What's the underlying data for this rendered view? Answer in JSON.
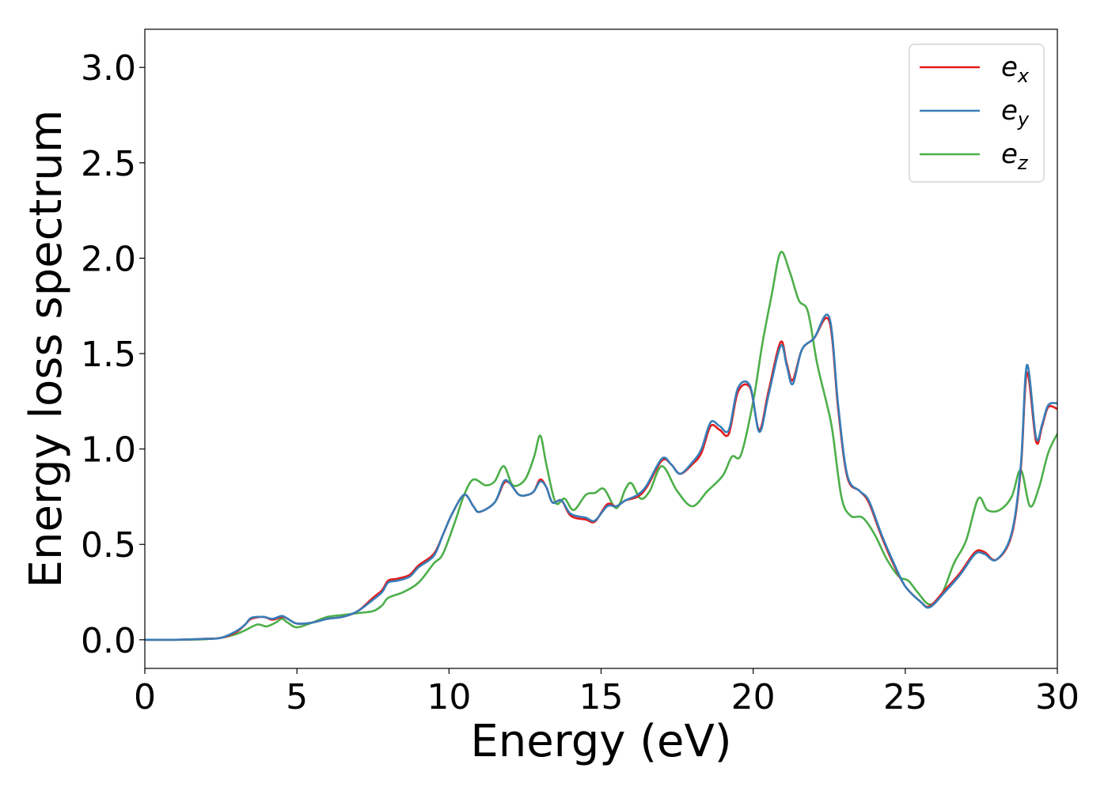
{
  "chart_data": {
    "type": "line",
    "title": "",
    "xlabel": "Energy (eV)",
    "ylabel": "Energy loss spectrum",
    "xlim": [
      0,
      30
    ],
    "ylim": [
      -0.15,
      3.2
    ],
    "xticks": [
      0,
      5,
      10,
      15,
      20,
      25,
      30
    ],
    "xtick_labels": [
      "0",
      "5",
      "10",
      "15",
      "20",
      "25",
      "30"
    ],
    "yticks": [
      0.0,
      0.5,
      1.0,
      1.5,
      2.0,
      2.5,
      3.0
    ],
    "ytick_labels": [
      "0.0",
      "0.5",
      "1.0",
      "1.5",
      "2.0",
      "2.5",
      "3.0"
    ],
    "grid": false,
    "legend_position": "top-right",
    "series": [
      {
        "name": "e_x",
        "legend_base": "e",
        "legend_sub": "x",
        "color": "#e41a1c",
        "points": [
          [
            0,
            0
          ],
          [
            1,
            0
          ],
          [
            2,
            0.005
          ],
          [
            2.5,
            0.01
          ],
          [
            3,
            0.04
          ],
          [
            3.3,
            0.08
          ],
          [
            3.5,
            0.11
          ],
          [
            3.9,
            0.12
          ],
          [
            4.2,
            0.105
          ],
          [
            4.5,
            0.12
          ],
          [
            4.7,
            0.11
          ],
          [
            5,
            0.085
          ],
          [
            5.5,
            0.09
          ],
          [
            6,
            0.11
          ],
          [
            6.5,
            0.12
          ],
          [
            7,
            0.15
          ],
          [
            7.5,
            0.22
          ],
          [
            7.8,
            0.26
          ],
          [
            8,
            0.31
          ],
          [
            8.3,
            0.32
          ],
          [
            8.7,
            0.34
          ],
          [
            9,
            0.39
          ],
          [
            9.5,
            0.45
          ],
          [
            9.8,
            0.55
          ],
          [
            10.1,
            0.66
          ],
          [
            10.5,
            0.76
          ],
          [
            10.8,
            0.7
          ],
          [
            11,
            0.67
          ],
          [
            11.5,
            0.72
          ],
          [
            11.8,
            0.82
          ],
          [
            12,
            0.82
          ],
          [
            12.3,
            0.76
          ],
          [
            12.6,
            0.76
          ],
          [
            12.8,
            0.78
          ],
          [
            13,
            0.84
          ],
          [
            13.2,
            0.8
          ],
          [
            13.4,
            0.72
          ],
          [
            13.7,
            0.73
          ],
          [
            14,
            0.65
          ],
          [
            14.5,
            0.63
          ],
          [
            14.8,
            0.62
          ],
          [
            15.2,
            0.71
          ],
          [
            15.5,
            0.7
          ],
          [
            15.8,
            0.73
          ],
          [
            16.2,
            0.75
          ],
          [
            16.5,
            0.8
          ],
          [
            17,
            0.94
          ],
          [
            17.3,
            0.92
          ],
          [
            17.6,
            0.87
          ],
          [
            18,
            0.92
          ],
          [
            18.3,
            0.98
          ],
          [
            18.6,
            1.12
          ],
          [
            18.9,
            1.1
          ],
          [
            19.2,
            1.08
          ],
          [
            19.5,
            1.3
          ],
          [
            19.9,
            1.32
          ],
          [
            20.2,
            1.1
          ],
          [
            20.5,
            1.3
          ],
          [
            20.9,
            1.56
          ],
          [
            21.1,
            1.45
          ],
          [
            21.3,
            1.36
          ],
          [
            21.6,
            1.52
          ],
          [
            22,
            1.58
          ],
          [
            22.5,
            1.67
          ],
          [
            22.8,
            1.2
          ],
          [
            23.1,
            0.85
          ],
          [
            23.5,
            0.78
          ],
          [
            23.8,
            0.72
          ],
          [
            24.2,
            0.55
          ],
          [
            24.6,
            0.4
          ],
          [
            25,
            0.28
          ],
          [
            25.5,
            0.2
          ],
          [
            25.8,
            0.175
          ],
          [
            26.3,
            0.26
          ],
          [
            26.8,
            0.35
          ],
          [
            27.3,
            0.46
          ],
          [
            27.6,
            0.46
          ],
          [
            28,
            0.42
          ],
          [
            28.5,
            0.55
          ],
          [
            28.8,
            0.9
          ],
          [
            29,
            1.4
          ],
          [
            29.3,
            1.04
          ],
          [
            29.5,
            1.12
          ],
          [
            29.7,
            1.22
          ],
          [
            30,
            1.21
          ]
        ]
      },
      {
        "name": "e_y",
        "legend_base": "e",
        "legend_sub": "y",
        "color": "#377eb8",
        "points": [
          [
            0,
            0
          ],
          [
            1,
            0
          ],
          [
            2,
            0.005
          ],
          [
            2.5,
            0.01
          ],
          [
            3,
            0.045
          ],
          [
            3.3,
            0.08
          ],
          [
            3.5,
            0.115
          ],
          [
            3.9,
            0.12
          ],
          [
            4.2,
            0.11
          ],
          [
            4.5,
            0.125
          ],
          [
            4.7,
            0.11
          ],
          [
            5,
            0.085
          ],
          [
            5.5,
            0.09
          ],
          [
            6,
            0.11
          ],
          [
            6.5,
            0.12
          ],
          [
            7,
            0.15
          ],
          [
            7.5,
            0.21
          ],
          [
            7.8,
            0.25
          ],
          [
            8,
            0.3
          ],
          [
            8.3,
            0.31
          ],
          [
            8.7,
            0.33
          ],
          [
            9,
            0.38
          ],
          [
            9.5,
            0.44
          ],
          [
            9.8,
            0.55
          ],
          [
            10.1,
            0.66
          ],
          [
            10.5,
            0.76
          ],
          [
            10.8,
            0.7
          ],
          [
            11,
            0.67
          ],
          [
            11.5,
            0.72
          ],
          [
            11.8,
            0.83
          ],
          [
            12,
            0.82
          ],
          [
            12.3,
            0.76
          ],
          [
            12.6,
            0.76
          ],
          [
            12.8,
            0.78
          ],
          [
            13,
            0.83
          ],
          [
            13.2,
            0.8
          ],
          [
            13.4,
            0.72
          ],
          [
            13.7,
            0.73
          ],
          [
            14,
            0.66
          ],
          [
            14.5,
            0.64
          ],
          [
            14.8,
            0.625
          ],
          [
            15.2,
            0.7
          ],
          [
            15.5,
            0.7
          ],
          [
            15.8,
            0.73
          ],
          [
            16.2,
            0.76
          ],
          [
            16.5,
            0.81
          ],
          [
            17,
            0.95
          ],
          [
            17.3,
            0.92
          ],
          [
            17.6,
            0.87
          ],
          [
            18,
            0.93
          ],
          [
            18.3,
            1.0
          ],
          [
            18.6,
            1.14
          ],
          [
            18.9,
            1.12
          ],
          [
            19.2,
            1.1
          ],
          [
            19.5,
            1.32
          ],
          [
            19.9,
            1.33
          ],
          [
            20.2,
            1.09
          ],
          [
            20.5,
            1.28
          ],
          [
            20.9,
            1.54
          ],
          [
            21.1,
            1.44
          ],
          [
            21.3,
            1.34
          ],
          [
            21.6,
            1.52
          ],
          [
            22,
            1.58
          ],
          [
            22.5,
            1.69
          ],
          [
            22.8,
            1.22
          ],
          [
            23.1,
            0.86
          ],
          [
            23.5,
            0.78
          ],
          [
            23.8,
            0.73
          ],
          [
            24.2,
            0.56
          ],
          [
            24.6,
            0.41
          ],
          [
            25,
            0.28
          ],
          [
            25.5,
            0.2
          ],
          [
            25.8,
            0.17
          ],
          [
            26.3,
            0.25
          ],
          [
            26.8,
            0.34
          ],
          [
            27.3,
            0.45
          ],
          [
            27.6,
            0.45
          ],
          [
            28,
            0.42
          ],
          [
            28.5,
            0.56
          ],
          [
            28.8,
            0.92
          ],
          [
            29,
            1.44
          ],
          [
            29.3,
            1.06
          ],
          [
            29.5,
            1.13
          ],
          [
            29.7,
            1.23
          ],
          [
            30,
            1.24
          ]
        ]
      },
      {
        "name": "e_z",
        "legend_base": "e",
        "legend_sub": "z",
        "color": "#4daf4a",
        "points": [
          [
            0,
            0
          ],
          [
            1,
            0
          ],
          [
            2,
            0.003
          ],
          [
            2.5,
            0.01
          ],
          [
            3,
            0.03
          ],
          [
            3.3,
            0.05
          ],
          [
            3.7,
            0.08
          ],
          [
            4,
            0.07
          ],
          [
            4.3,
            0.09
          ],
          [
            4.5,
            0.11
          ],
          [
            4.7,
            0.09
          ],
          [
            5,
            0.065
          ],
          [
            5.5,
            0.09
          ],
          [
            6,
            0.12
          ],
          [
            6.5,
            0.13
          ],
          [
            7,
            0.14
          ],
          [
            7.5,
            0.15
          ],
          [
            7.8,
            0.18
          ],
          [
            8,
            0.22
          ],
          [
            8.5,
            0.25
          ],
          [
            9,
            0.3
          ],
          [
            9.5,
            0.4
          ],
          [
            9.8,
            0.45
          ],
          [
            10.2,
            0.62
          ],
          [
            10.5,
            0.76
          ],
          [
            10.8,
            0.84
          ],
          [
            11.2,
            0.81
          ],
          [
            11.5,
            0.83
          ],
          [
            11.8,
            0.91
          ],
          [
            12.1,
            0.81
          ],
          [
            12.5,
            0.84
          ],
          [
            12.8,
            0.96
          ],
          [
            13,
            1.07
          ],
          [
            13.2,
            0.92
          ],
          [
            13.5,
            0.72
          ],
          [
            13.8,
            0.74
          ],
          [
            14.1,
            0.68
          ],
          [
            14.5,
            0.76
          ],
          [
            14.8,
            0.77
          ],
          [
            15.1,
            0.79
          ],
          [
            15.5,
            0.69
          ],
          [
            15.8,
            0.79
          ],
          [
            16,
            0.82
          ],
          [
            16.3,
            0.74
          ],
          [
            16.6,
            0.78
          ],
          [
            17,
            0.91
          ],
          [
            17.5,
            0.78
          ],
          [
            18,
            0.7
          ],
          [
            18.5,
            0.78
          ],
          [
            19,
            0.86
          ],
          [
            19.3,
            0.96
          ],
          [
            19.6,
            0.97
          ],
          [
            20,
            1.25
          ],
          [
            20.3,
            1.55
          ],
          [
            20.6,
            1.8
          ],
          [
            20.9,
            2.03
          ],
          [
            21.2,
            1.93
          ],
          [
            21.5,
            1.78
          ],
          [
            21.8,
            1.72
          ],
          [
            22.1,
            1.45
          ],
          [
            22.4,
            1.25
          ],
          [
            22.6,
            1.1
          ],
          [
            22.9,
            0.75
          ],
          [
            23.2,
            0.65
          ],
          [
            23.6,
            0.64
          ],
          [
            24,
            0.55
          ],
          [
            24.4,
            0.42
          ],
          [
            24.8,
            0.33
          ],
          [
            25.1,
            0.31
          ],
          [
            25.4,
            0.25
          ],
          [
            25.8,
            0.185
          ],
          [
            26.2,
            0.24
          ],
          [
            26.6,
            0.4
          ],
          [
            27,
            0.52
          ],
          [
            27.4,
            0.74
          ],
          [
            27.7,
            0.68
          ],
          [
            28.1,
            0.68
          ],
          [
            28.5,
            0.75
          ],
          [
            28.8,
            0.89
          ],
          [
            29.1,
            0.7
          ],
          [
            29.4,
            0.8
          ],
          [
            29.7,
            0.98
          ],
          [
            30,
            1.08
          ]
        ]
      }
    ]
  }
}
